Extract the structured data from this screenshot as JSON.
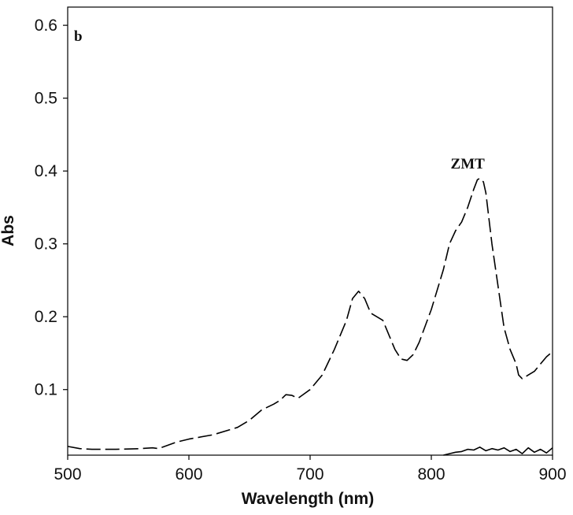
{
  "chart_data": {
    "type": "line",
    "panel_label": "b",
    "xlabel": "Wavelength (nm)",
    "ylabel": "Abs",
    "xlim": [
      500,
      900
    ],
    "ylim": [
      0.01,
      0.625
    ],
    "xticks": [
      500,
      600,
      700,
      800,
      900
    ],
    "yticks": [
      0.1,
      0.2,
      0.3,
      0.4,
      0.5,
      0.6
    ],
    "xtick_labels": [
      "500",
      "600",
      "700",
      "800",
      "900"
    ],
    "ytick_labels": [
      "0.1",
      "0.2",
      "0.3",
      "0.4",
      "0.5",
      "0.6"
    ],
    "grid": false,
    "legend": "none",
    "annotations": [
      {
        "text": "ZMT",
        "x": 830,
        "y": 0.41
      }
    ],
    "series": [
      {
        "style": "dashed",
        "color": "#000000",
        "x": [
          500,
          510,
          520,
          540,
          560,
          570,
          575,
          580,
          590,
          600,
          620,
          640,
          650,
          660,
          670,
          675,
          680,
          685,
          690,
          700,
          710,
          720,
          725,
          730,
          735,
          740,
          745,
          750,
          755,
          760,
          765,
          770,
          775,
          780,
          785,
          790,
          800,
          810,
          815,
          820,
          825,
          830,
          835,
          838,
          840,
          843,
          845,
          850,
          860,
          865,
          870,
          872,
          875,
          880,
          885,
          890,
          895,
          900
        ],
        "y": [
          0.022,
          0.019,
          0.018,
          0.018,
          0.019,
          0.02,
          0.019,
          0.022,
          0.028,
          0.032,
          0.038,
          0.048,
          0.058,
          0.072,
          0.08,
          0.085,
          0.093,
          0.092,
          0.088,
          0.1,
          0.12,
          0.155,
          0.175,
          0.195,
          0.225,
          0.235,
          0.225,
          0.205,
          0.2,
          0.195,
          0.175,
          0.155,
          0.142,
          0.14,
          0.148,
          0.165,
          0.21,
          0.265,
          0.3,
          0.318,
          0.33,
          0.35,
          0.375,
          0.388,
          0.39,
          0.385,
          0.37,
          0.3,
          0.185,
          0.155,
          0.135,
          0.12,
          0.115,
          0.12,
          0.125,
          0.135,
          0.145,
          0.152
        ]
      },
      {
        "style": "solid",
        "color": "#000000",
        "x": [
          810,
          815,
          820,
          825,
          830,
          835,
          840,
          845,
          850,
          855,
          860,
          865,
          870,
          875,
          880,
          885,
          890,
          895,
          900
        ],
        "y": [
          0.01,
          0.012,
          0.014,
          0.015,
          0.018,
          0.017,
          0.021,
          0.016,
          0.019,
          0.017,
          0.02,
          0.015,
          0.018,
          0.012,
          0.02,
          0.014,
          0.018,
          0.013,
          0.02
        ]
      }
    ]
  }
}
